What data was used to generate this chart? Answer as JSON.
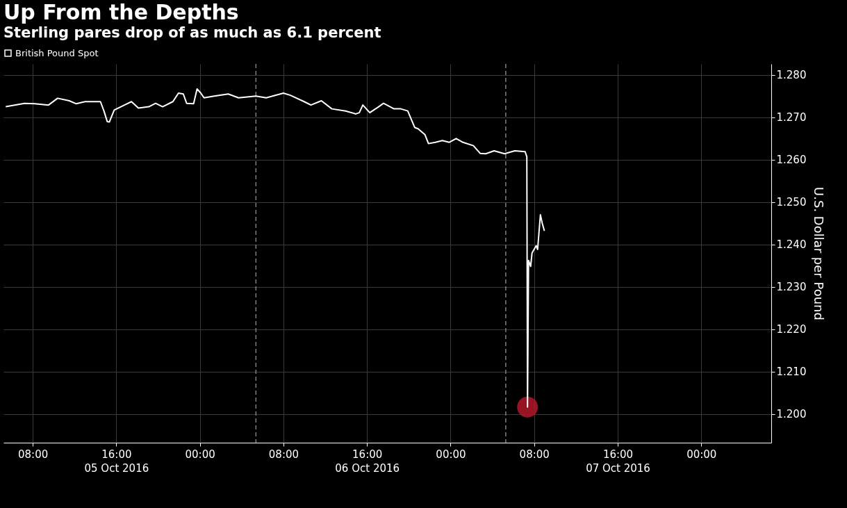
{
  "chart_data": {
    "type": "line",
    "title": "Up From the Depths",
    "subtitle": "Sterling pares drop of as much as 6.1 percent",
    "ylabel": "U.S. Dollar per Pound",
    "xlim": [
      "2016-10-05T05:12",
      "2016-10-08T06:42"
    ],
    "ylim": [
      1.1932,
      1.2826
    ],
    "xticks": [
      {
        "value": "2016-10-05T08:00",
        "label": "08:00"
      },
      {
        "value": "2016-10-05T16:00",
        "label": "16:00\n05 Oct 2016"
      },
      {
        "value": "2016-10-06T00:00",
        "label": "00:00"
      },
      {
        "value": "2016-10-06T08:00",
        "label": "08:00"
      },
      {
        "value": "2016-10-06T16:00",
        "label": "16:00\n06 Oct 2016"
      },
      {
        "value": "2016-10-07T00:00",
        "label": "00:00"
      },
      {
        "value": "2016-10-07T08:00",
        "label": "08:00"
      },
      {
        "value": "2016-10-07T16:00",
        "label": "16:00\n07 Oct 2016"
      },
      {
        "value": "2016-10-08T00:00",
        "label": "00:00"
      }
    ],
    "yticks": [
      {
        "value": 1.2,
        "label": "1.200"
      },
      {
        "value": 1.21,
        "label": "1.210"
      },
      {
        "value": 1.22,
        "label": "1.220"
      },
      {
        "value": 1.23,
        "label": "1.230"
      },
      {
        "value": 1.24,
        "label": "1.240"
      },
      {
        "value": 1.25,
        "label": "1.250"
      },
      {
        "value": 1.26,
        "label": "1.260"
      },
      {
        "value": 1.27,
        "label": "1.270"
      },
      {
        "value": 1.28,
        "label": "1.280"
      }
    ],
    "grid": true,
    "legend": "top left",
    "ref_lines": [
      {
        "axis": "x",
        "value": "2016-10-06T05:22",
        "color": "#808080",
        "line_style": "dashed"
      },
      {
        "axis": "x",
        "value": "2016-10-07T05:17",
        "color": "#808080",
        "line_style": "dashed"
      }
    ],
    "series": [
      {
        "name": "British Pound Spot",
        "color": "#ffffff",
        "x": [
          "2016-10-05T05:25",
          "2016-10-05T07:13",
          "2016-10-05T08:12",
          "2016-10-05T09:31",
          "2016-10-05T10:23",
          "2016-10-05T11:30",
          "2016-10-05T12:10",
          "2016-10-05T13:01",
          "2016-10-05T14:29",
          "2016-10-05T14:49",
          "2016-10-05T15:08",
          "2016-10-05T15:20",
          "2016-10-05T15:48",
          "2016-10-05T16:47",
          "2016-10-05T17:27",
          "2016-10-05T18:07",
          "2016-10-05T19:07",
          "2016-10-05T19:46",
          "2016-10-05T20:26",
          "2016-10-05T21:25",
          "2016-10-05T21:57",
          "2016-10-05T22:25",
          "2016-10-05T22:44",
          "2016-10-05T23:24",
          "2016-10-05T23:44",
          "2016-10-06T00:04",
          "2016-10-06T00:24",
          "2016-10-06T01:23",
          "2016-10-06T02:43",
          "2016-10-06T03:42",
          "2016-10-06T05:22",
          "2016-10-06T06:21",
          "2016-10-06T08:00",
          "2016-10-06T08:40",
          "2016-10-06T09:59",
          "2016-10-06T10:38",
          "2016-10-06T11:38",
          "2016-10-06T12:38",
          "2016-10-06T13:57",
          "2016-10-06T14:56",
          "2016-10-06T15:16",
          "2016-10-06T15:36",
          "2016-10-06T16:16",
          "2016-10-06T17:07",
          "2016-10-06T17:35",
          "2016-10-06T18:35",
          "2016-10-06T19:14",
          "2016-10-06T19:54",
          "2016-10-06T20:34",
          "2016-10-06T20:53",
          "2016-10-06T21:33",
          "2016-10-06T21:53",
          "2016-10-06T22:33",
          "2016-10-06T23:13",
          "2016-10-06T23:52",
          "2016-10-07T00:32",
          "2016-10-07T01:11",
          "2016-10-07T02:11",
          "2016-10-07T02:50",
          "2016-10-07T03:22",
          "2016-10-07T04:10",
          "2016-10-07T05:10",
          "2016-10-07T06:09",
          "2016-10-07T07:08",
          "2016-10-07T07:18",
          "2016-10-07T07:22",
          "2016-10-07T07:28",
          "2016-10-07T07:40",
          "2016-10-07T07:48",
          "2016-10-07T08:12",
          "2016-10-07T08:20",
          "2016-10-07T08:36",
          "2016-10-07T08:47",
          "2016-10-07T08:59"
        ],
        "values": [
          1.2725,
          1.2733,
          1.2732,
          1.2729,
          1.2745,
          1.2739,
          1.2732,
          1.2737,
          1.2737,
          1.2715,
          1.269,
          1.2689,
          1.2717,
          1.2729,
          1.2737,
          1.2722,
          1.2725,
          1.2733,
          1.2725,
          1.2737,
          1.2757,
          1.2755,
          1.2733,
          1.2732,
          1.2767,
          1.2758,
          1.2746,
          1.275,
          1.2755,
          1.2746,
          1.275,
          1.2746,
          1.2757,
          1.2752,
          1.2737,
          1.2729,
          1.2739,
          1.272,
          1.2715,
          1.2708,
          1.2711,
          1.2729,
          1.2711,
          1.2725,
          1.2733,
          1.272,
          1.272,
          1.2715,
          1.2676,
          1.2673,
          1.2659,
          1.2638,
          1.2641,
          1.2645,
          1.2641,
          1.265,
          1.2641,
          1.2633,
          1.2615,
          1.2614,
          1.2621,
          1.2614,
          1.2621,
          1.2619,
          1.2607,
          1.2016,
          1.2362,
          1.2348,
          1.238,
          1.2397,
          1.2388,
          1.247,
          1.2449,
          1.2432
        ]
      },
      {
        "type": "scatter",
        "color": "#b0182a",
        "marker": "circle",
        "x": [
          "2016-10-07T07:22"
        ],
        "values": [
          1.2016
        ]
      }
    ]
  }
}
